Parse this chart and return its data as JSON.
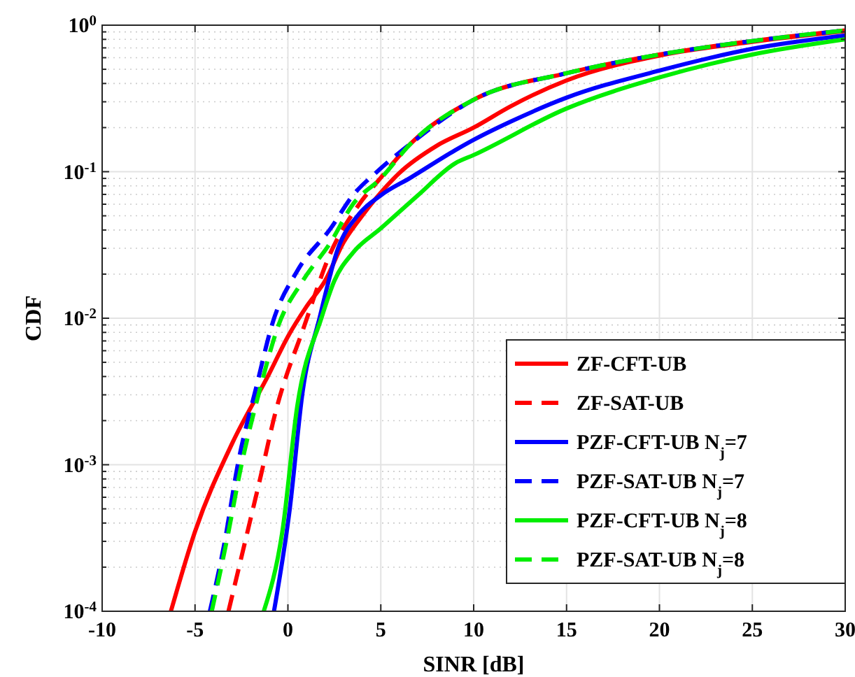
{
  "chart_data": {
    "type": "line",
    "xlabel": "SINR [dB]",
    "ylabel": "CDF",
    "log": "y",
    "grid": true,
    "legend": "bottom right",
    "xlim": [
      -10,
      30
    ],
    "xticks": [
      -10,
      -5,
      0,
      5,
      10,
      15,
      20,
      25,
      30
    ],
    "ylim": [
      0.0001,
      1
    ],
    "yticks": [
      {
        "value": 0.0001,
        "label": "10$^{-4}$"
      },
      {
        "value": 0.001,
        "label": "10$^{-3}$"
      },
      {
        "value": 0.01,
        "label": "10$^{-2}$"
      },
      {
        "value": 0.1,
        "label": "10$^{-1}$"
      },
      {
        "value": 1,
        "label": "10$^{0}$"
      }
    ],
    "series": [
      {
        "name": "ZF-CFT-UB",
        "color": "#ff0000",
        "line_style": "solid",
        "x": [
          -6.3,
          -5,
          -3,
          -1,
          0,
          1,
          2,
          3,
          4,
          5,
          6,
          8,
          10,
          12,
          15,
          20,
          25,
          30
        ],
        "values": [
          0.0001,
          0.00035,
          0.0014,
          0.0042,
          0.0075,
          0.012,
          0.018,
          0.033,
          0.05,
          0.072,
          0.098,
          0.15,
          0.2,
          0.28,
          0.42,
          0.62,
          0.77,
          0.91
        ]
      },
      {
        "name": "ZF-SAT-UB",
        "color": "#ff0000",
        "line_style": "dashed",
        "x": [
          -3.2,
          -2.3,
          -1.45,
          -0.7,
          0.9,
          2.3,
          3.8,
          5,
          6.6,
          10,
          15,
          20,
          25,
          30
        ],
        "values": [
          0.0001,
          0.0003,
          0.00085,
          0.0022,
          0.009,
          0.028,
          0.059,
          0.091,
          0.155,
          0.31,
          0.47,
          0.63,
          0.78,
          0.92
        ]
      },
      {
        "name": "PZF-CFT-UB N$_{j}$=7",
        "color": "#0000ff",
        "line_style": "solid",
        "x": [
          -0.75,
          0.1,
          0.8,
          1.7,
          2.7,
          3.8,
          5,
          6.6,
          9,
          10,
          12,
          15,
          20,
          25,
          30
        ],
        "values": [
          0.0001,
          0.0005,
          0.0032,
          0.01,
          0.03,
          0.051,
          0.069,
          0.091,
          0.14,
          0.165,
          0.22,
          0.32,
          0.49,
          0.69,
          0.85
        ]
      },
      {
        "name": "PZF-SAT-UB N$_{j}$=7",
        "color": "#0000ff",
        "line_style": "dashed",
        "x": [
          -4.2,
          -3.4,
          -2.7,
          -1.7,
          -0.8,
          0.5,
          2.3,
          3.5,
          4.8,
          6.6,
          10,
          15,
          20,
          25,
          30
        ],
        "values": [
          0.0001,
          0.0003,
          0.001,
          0.0034,
          0.0095,
          0.021,
          0.041,
          0.069,
          0.1,
          0.155,
          0.31,
          0.47,
          0.63,
          0.78,
          0.92
        ]
      },
      {
        "name": "PZF-CFT-UB N$_{j}$=8",
        "color": "#00ee00",
        "line_style": "solid",
        "x": [
          -1.3,
          -0.3,
          0.5,
          1.8,
          2.5,
          3.5,
          5,
          7,
          9,
          10,
          15,
          20,
          25,
          30
        ],
        "values": [
          0.0001,
          0.00035,
          0.0025,
          0.01,
          0.018,
          0.028,
          0.041,
          0.069,
          0.114,
          0.13,
          0.27,
          0.44,
          0.63,
          0.8
        ]
      },
      {
        "name": "PZF-SAT-UB N$_{j}$=8",
        "color": "#00ee00",
        "line_style": "dashed",
        "x": [
          -4.1,
          -3.3,
          -2.5,
          -1.5,
          -0.5,
          0.8,
          2.3,
          3.5,
          5,
          6.6,
          10,
          15,
          20,
          25,
          30
        ],
        "values": [
          0.0001,
          0.0003,
          0.001,
          0.0033,
          0.009,
          0.018,
          0.033,
          0.06,
          0.09,
          0.155,
          0.31,
          0.47,
          0.63,
          0.78,
          0.92
        ]
      }
    ]
  }
}
